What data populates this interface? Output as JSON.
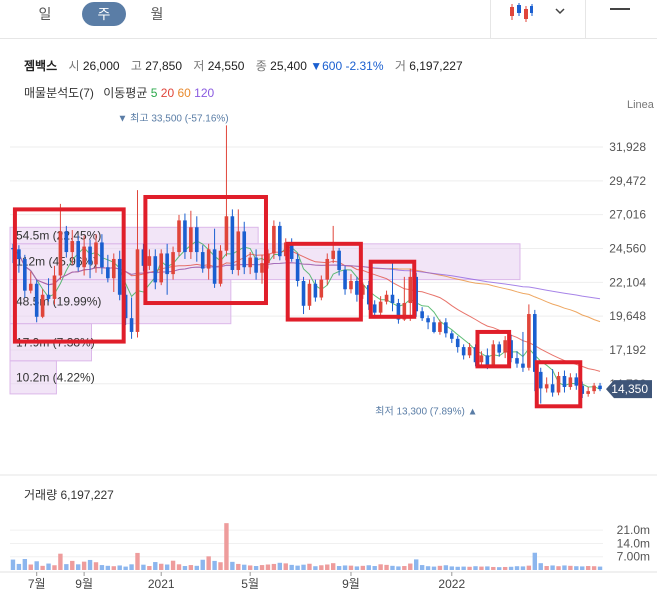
{
  "tabs": [
    {
      "label": "일",
      "active": false
    },
    {
      "label": "주",
      "active": true
    },
    {
      "label": "월",
      "active": false
    }
  ],
  "header": {
    "name": "젬백스",
    "open_label": "시",
    "open": "26,000",
    "high_label": "고",
    "high": "27,850",
    "low_label": "저",
    "low": "24,550",
    "close_label": "종",
    "close": "25,400",
    "change": "▼600",
    "change_pct": "-2.31%",
    "volume_label": "거",
    "volume": "6,197,227"
  },
  "indicators": {
    "profile_label": "매물분석도(7)",
    "ma_label": "이동평균",
    "ma5": "5",
    "ma20": "20",
    "ma60": "60",
    "ma120": "120"
  },
  "scale_label": "Linea",
  "colors": {
    "up": "#e0453a",
    "down": "#1a5fd0",
    "accent": "#5a7da6",
    "ma5": "#2aa84a",
    "ma20": "#e0453a",
    "ma60": "#e88a2e",
    "ma120": "#8a5be0",
    "highlight_box": "#e01e2a",
    "profile": "#e8d0f0"
  },
  "chart_data": {
    "type": "candlestick",
    "ylim": [
      9200,
      34400
    ],
    "y_ticks": [
      {
        "value": 31928,
        "label": "31,928"
      },
      {
        "value": 29472,
        "label": "29,472"
      },
      {
        "value": 27016,
        "label": "27,016"
      },
      {
        "value": 24560,
        "label": "24,560"
      },
      {
        "value": 22104,
        "label": "22,104"
      },
      {
        "value": 19648,
        "label": "19,648"
      },
      {
        "value": 17192,
        "label": "17,192"
      },
      {
        "value": 14736,
        "label": "14,736"
      }
    ],
    "x_ticks": [
      {
        "label": "7월",
        "index": 4
      },
      {
        "label": "9월",
        "index": 12
      },
      {
        "label": "2021",
        "index": 25
      },
      {
        "label": "5월",
        "index": 40
      },
      {
        "label": "9월",
        "index": 57
      },
      {
        "label": "2022",
        "index": 74
      }
    ],
    "current_price": {
      "value": 14350,
      "label": "14,350"
    },
    "max_marker": {
      "label": "▼ 최고 33,500 (-57.16%)",
      "value": 33500,
      "index": 27
    },
    "min_marker": {
      "label": "최저 13,300 (7.89%) ▲",
      "value": 13300,
      "index": 78
    },
    "volume_profile": [
      {
        "low": 26100,
        "high": 27600,
        "volume": "",
        "highlight": false
      },
      {
        "low": 24900,
        "high": 26100,
        "volume": "54.5m (22.45%)",
        "highlight": false
      },
      {
        "low": 22300,
        "high": 24900,
        "volume": "112m (45.96%)",
        "highlight": false
      },
      {
        "low": 19100,
        "high": 22300,
        "volume": "48.5m (19.99%)",
        "highlight": false
      },
      {
        "low": 16400,
        "high": 19100,
        "volume": "17.9m (7.38%)",
        "highlight": false
      },
      {
        "low": 14000,
        "high": 16400,
        "volume": "10.2m (4.22%)",
        "highlight": false
      }
    ],
    "candles": [
      [
        24600,
        24500,
        23500,
        24900
      ],
      [
        24500,
        23800,
        22800,
        24800
      ],
      [
        23800,
        21500,
        21000,
        24100
      ],
      [
        21500,
        22000,
        21300,
        22900
      ],
      [
        22000,
        19600,
        19200,
        22300
      ],
      [
        19600,
        21200,
        19500,
        21600
      ],
      [
        21200,
        20900,
        20700,
        22400
      ],
      [
        20900,
        22600,
        20500,
        23300
      ],
      [
        22600,
        25800,
        22300,
        27800
      ],
      [
        25800,
        24300,
        23900,
        26200
      ],
      [
        24300,
        25100,
        23400,
        25900
      ],
      [
        25100,
        23200,
        22900,
        25500
      ],
      [
        23200,
        24700,
        22600,
        25500
      ],
      [
        24700,
        23400,
        22400,
        25200
      ],
      [
        23400,
        25000,
        22800,
        25600
      ],
      [
        25000,
        23200,
        22700,
        25600
      ],
      [
        23200,
        22400,
        22100,
        24100
      ],
      [
        22400,
        23800,
        21400,
        24200
      ],
      [
        23800,
        21200,
        20800,
        24400
      ],
      [
        21200,
        19500,
        19000,
        21800
      ],
      [
        19500,
        18500,
        18000,
        21000
      ],
      [
        18500,
        24500,
        18100,
        28800
      ],
      [
        24500,
        23300,
        22900,
        24900
      ],
      [
        23300,
        24000,
        23000,
        24500
      ],
      [
        24000,
        22100,
        21600,
        24500
      ],
      [
        22100,
        24200,
        21900,
        24500
      ],
      [
        24200,
        22700,
        21200,
        24900
      ],
      [
        22700,
        24300,
        22300,
        24700
      ],
      [
        24300,
        26600,
        24000,
        27000
      ],
      [
        26600,
        24300,
        23800,
        27100
      ],
      [
        24300,
        26100,
        23800,
        27300
      ],
      [
        26100,
        24300,
        23600,
        26900
      ],
      [
        24300,
        23100,
        22800,
        24800
      ],
      [
        23100,
        24500,
        22300,
        24900
      ],
      [
        24500,
        22000,
        21700,
        26000
      ],
      [
        22000,
        24400,
        21800,
        24800
      ],
      [
        24400,
        26900,
        24000,
        33500
      ],
      [
        26900,
        23000,
        22700,
        27400
      ],
      [
        23000,
        25800,
        22600,
        27400
      ],
      [
        25800,
        23200,
        22700,
        26500
      ],
      [
        23200,
        23900,
        22700,
        24300
      ],
      [
        23900,
        22800,
        22300,
        24500
      ],
      [
        22800,
        23500,
        22000,
        24100
      ],
      [
        23500,
        24200,
        23100,
        24500
      ],
      [
        24200,
        26200,
        23800,
        26600
      ],
      [
        26200,
        24000,
        23700,
        26500
      ],
      [
        24000,
        25000,
        23700,
        25300
      ],
      [
        25000,
        23800,
        23600,
        25300
      ],
      [
        23800,
        22200,
        21800,
        24200
      ],
      [
        22200,
        20400,
        19800,
        22500
      ],
      [
        20400,
        22000,
        20100,
        22300
      ],
      [
        22000,
        21000,
        20700,
        22300
      ],
      [
        21000,
        22300,
        20800,
        22600
      ],
      [
        22300,
        23800,
        21900,
        24200
      ],
      [
        23800,
        24400,
        23500,
        26200
      ],
      [
        24400,
        23000,
        22600,
        24600
      ],
      [
        23000,
        21600,
        21200,
        23300
      ],
      [
        21600,
        22200,
        21300,
        22700
      ],
      [
        22200,
        21200,
        20700,
        22500
      ],
      [
        21200,
        21900,
        20900,
        22100
      ],
      [
        21900,
        20500,
        20100,
        22200
      ],
      [
        20500,
        19900,
        19500,
        20800
      ],
      [
        19900,
        20700,
        19600,
        21100
      ],
      [
        20700,
        21200,
        20500,
        21500
      ],
      [
        21200,
        20600,
        20000,
        23500
      ],
      [
        20600,
        19400,
        19100,
        20900
      ],
      [
        19400,
        20600,
        19300,
        22500
      ],
      [
        20600,
        22500,
        19300,
        23100
      ],
      [
        22500,
        20000,
        19600,
        22800
      ],
      [
        20000,
        19500,
        19300,
        20300
      ],
      [
        19500,
        19200,
        18700,
        19700
      ],
      [
        19200,
        18500,
        18400,
        19600
      ],
      [
        18500,
        19200,
        18300,
        19400
      ],
      [
        19200,
        18400,
        18100,
        19500
      ],
      [
        18400,
        18000,
        17700,
        18600
      ],
      [
        18000,
        17400,
        17000,
        18200
      ],
      [
        17400,
        16800,
        16500,
        17600
      ],
      [
        16800,
        17400,
        16600,
        17700
      ],
      [
        17400,
        16300,
        16000,
        17600
      ],
      [
        16300,
        16800,
        16000,
        17100
      ],
      [
        16800,
        16100,
        15800,
        17300
      ],
      [
        16100,
        17600,
        15900,
        17900
      ],
      [
        17600,
        17000,
        16700,
        17800
      ],
      [
        17000,
        17900,
        16600,
        18200
      ],
      [
        17900,
        16600,
        16300,
        18300
      ],
      [
        16600,
        16200,
        15900,
        17100
      ],
      [
        16200,
        15900,
        15600,
        18500
      ],
      [
        15900,
        19800,
        15700,
        20500
      ],
      [
        19800,
        15600,
        14200,
        20100
      ],
      [
        15600,
        14400,
        13300,
        15900
      ],
      [
        14400,
        14700,
        14100,
        15200
      ],
      [
        14700,
        14100,
        13800,
        15800
      ],
      [
        14100,
        15300,
        13900,
        15600
      ],
      [
        15300,
        14500,
        14100,
        15700
      ],
      [
        14500,
        15200,
        14300,
        15500
      ],
      [
        15200,
        14600,
        14300,
        15500
      ],
      [
        14600,
        14000,
        13700,
        14900
      ],
      [
        14000,
        14200,
        13800,
        14500
      ],
      [
        14200,
        14600,
        14000,
        14800
      ],
      [
        14600,
        14350,
        14200,
        14800
      ]
    ],
    "volume_title": "거래량 6,197,227",
    "volume_ticks": [
      {
        "value": 21000000,
        "label": "21.0m"
      },
      {
        "value": 14000000,
        "label": "14.0m"
      },
      {
        "value": 7000000,
        "label": "7.00m"
      }
    ],
    "volume_max": 29000000,
    "volumes": [
      5.5,
      3.2,
      5.8,
      2.9,
      4.6,
      2.2,
      3.4,
      2.5,
      8.6,
      3.1,
      4.8,
      3.0,
      4.4,
      5.3,
      4.1,
      2.6,
      2.2,
      2.0,
      2.4,
      1.8,
      3.0,
      9.0,
      2.8,
      2.1,
      4.2,
      3.3,
      2.9,
      4.9,
      3.0,
      2.1,
      2.6,
      2.2,
      5.4,
      7.2,
      4.8,
      4.1,
      24.7,
      4.3,
      3.2,
      2.8,
      2.4,
      2.1,
      2.6,
      2.9,
      3.2,
      3.8,
      3.5,
      2.7,
      2.3,
      2.8,
      3.3,
      2.0,
      2.5,
      2.9,
      3.6,
      2.1,
      2.4,
      2.3,
      1.9,
      2.2,
      2.5,
      2.1,
      3.0,
      2.7,
      2.2,
      1.9,
      2.1,
      3.4,
      5.6,
      2.6,
      2.0,
      1.8,
      2.2,
      2.5,
      1.9,
      1.7,
      1.8,
      1.7,
      2.0,
      1.8,
      1.9,
      1.6,
      1.5,
      1.6,
      1.7,
      2.0,
      1.9,
      2.3,
      9.1,
      3.6,
      2.1,
      2.4,
      2.0,
      2.4,
      2.2,
      2.0,
      1.9,
      2.1,
      2.0,
      1.8
    ],
    "highlight_boxes": [
      {
        "start": 1,
        "end": 18,
        "top": 27400,
        "bottom": 17800
      },
      {
        "start": 23,
        "end": 42,
        "top": 28300,
        "bottom": 20600
      },
      {
        "start": 47,
        "end": 58,
        "top": 24900,
        "bottom": 19400
      },
      {
        "start": 61,
        "end": 67,
        "top": 23600,
        "bottom": 19600
      },
      {
        "start": 79,
        "end": 83,
        "top": 18500,
        "bottom": 16000
      },
      {
        "start": 89,
        "end": 95,
        "top": 16300,
        "bottom": 13100
      }
    ]
  }
}
